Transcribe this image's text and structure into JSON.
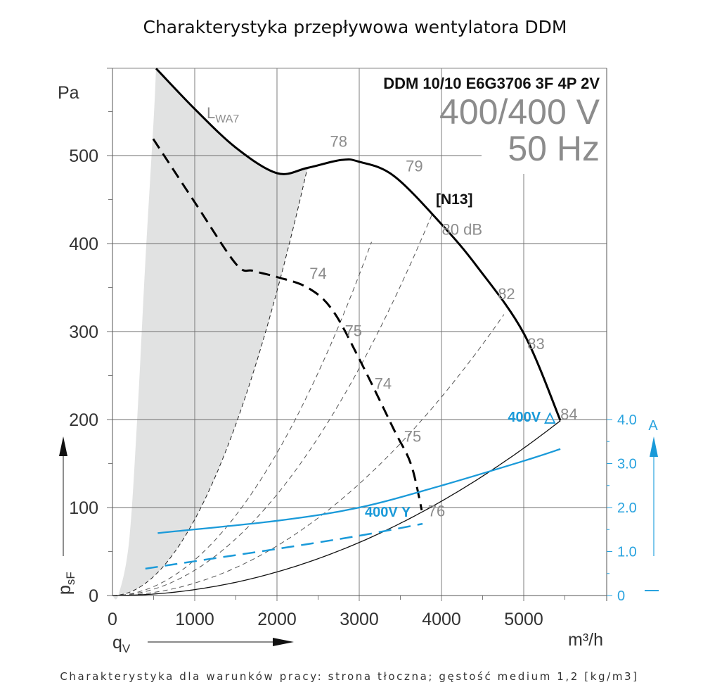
{
  "chart_data": {
    "type": "line",
    "title": "Charakterystyka przepływowa wentylatora DDM",
    "caption": "Charakterystyka dla warunków pracy: strona tłoczna; gęstość medium 1,2 [kg/m3]",
    "model": "DDM 10/10 E6G3706 3F 4P 2V",
    "voltage": "400/400 V",
    "frequency": "50 Hz",
    "xlabel": "qV",
    "xunit": "m³/h",
    "ylabel": "psF",
    "yunit": "Pa",
    "y2unit": "A",
    "xlim": [
      0,
      6000
    ],
    "ylim": [
      0,
      600
    ],
    "y2lim": [
      0,
      4.8
    ],
    "xticks": [
      "0",
      "1000",
      "2000",
      "3000",
      "4000",
      "5000"
    ],
    "xtick_values": [
      0,
      1000,
      2000,
      3000,
      4000,
      5000
    ],
    "yticks": [
      "0",
      "100",
      "200",
      "300",
      "400",
      "500"
    ],
    "ytick_values": [
      0,
      100,
      200,
      300,
      400,
      500
    ],
    "y2ticks": [
      "0",
      "1.0",
      "2.0",
      "3.0",
      "4.0"
    ],
    "y2tick_values": [
      0,
      1,
      2,
      3,
      4
    ],
    "grid": true,
    "lwa_label": "LWA7",
    "lwa_main": "L",
    "lwa_sub": "WA7",
    "curve_label_n13": "[N13]",
    "series": [
      {
        "name": "pressure-high-speed-400V-delta",
        "axis": "left",
        "style": "solid-thick",
        "color": "#000000",
        "x": [
          530,
          1000,
          1500,
          2000,
          2370,
          2780,
          3000,
          3420,
          4000,
          4440,
          5000,
          5445
        ],
        "y": [
          599,
          553,
          509,
          480,
          486,
          495,
          493,
          477,
          422,
          373,
          298,
          199
        ]
      },
      {
        "name": "pressure-low-speed-400V-Y",
        "axis": "left",
        "style": "dashed-thick",
        "color": "#000000",
        "x": [
          495,
          1000,
          1500,
          1710,
          2000,
          2370,
          2670,
          3000,
          3420,
          3630,
          3760
        ],
        "y": [
          519,
          447,
          377,
          369,
          362,
          350,
          325,
          269,
          189,
          149,
          97
        ]
      },
      {
        "name": "current-400V-delta",
        "axis": "right",
        "style": "solid",
        "color": "#1a9ad9",
        "label": "400V △",
        "x": [
          550,
          2000,
          3000,
          4000,
          5000,
          5445
        ],
        "y": [
          1.42,
          1.7,
          2.0,
          2.5,
          3.06,
          3.33
        ]
      },
      {
        "name": "current-400V-Y",
        "axis": "right",
        "style": "dashed",
        "color": "#1a9ad9",
        "label": "400V Y",
        "x": [
          400,
          1000,
          2000,
          3000,
          3770
        ],
        "y": [
          0.61,
          0.78,
          1.06,
          1.36,
          1.63
        ]
      }
    ],
    "system_curves": [
      {
        "name": "system-curve-1",
        "k": 8.65e-05,
        "x_end": 2370,
        "style": "dashed"
      },
      {
        "name": "system-curve-2",
        "k": 4.05e-05,
        "x_end": 3150,
        "style": "dashed"
      },
      {
        "name": "system-curve-n13",
        "k": 2.87e-05,
        "x_end": 3890,
        "style": "dashed"
      },
      {
        "name": "system-curve-4",
        "k": 1.41e-05,
        "x_end": 4760,
        "style": "dashed"
      },
      {
        "name": "system-curve-min",
        "k": 6.7e-06,
        "x_end": 5445,
        "style": "solid-thin"
      }
    ],
    "lwa_region": {
      "left_boundary": {
        "x": [
          70,
          200,
          300,
          400,
          500,
          530
        ],
        "y": [
          0,
          60,
          200,
          380,
          540,
          599
        ]
      },
      "color": "#e1e2e2"
    },
    "annotations": [
      {
        "text": "78",
        "x": 2750,
        "y": 510
      },
      {
        "text": "79",
        "x": 3670,
        "y": 482
      },
      {
        "text": "80 dB",
        "x": 4250,
        "y": 410
      },
      {
        "text": "82",
        "x": 4790,
        "y": 337
      },
      {
        "text": "83",
        "x": 5150,
        "y": 280
      },
      {
        "text": "84",
        "x": 5550,
        "y": 200
      },
      {
        "text": "74",
        "x": 2500,
        "y": 360
      },
      {
        "text": "75",
        "x": 2930,
        "y": 295
      },
      {
        "text": "74",
        "x": 3290,
        "y": 235
      },
      {
        "text": "75",
        "x": 3650,
        "y": 175
      },
      {
        "text": "76",
        "x": 3940,
        "y": 90
      }
    ],
    "label_delta": "400V △",
    "label_y": "400V Y"
  }
}
